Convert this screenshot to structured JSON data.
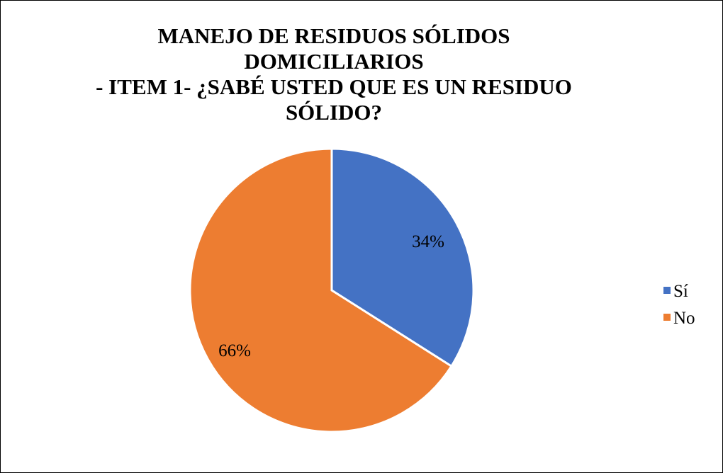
{
  "chart_data": {
    "type": "pie",
    "title_lines": [
      "MANEJO DE RESIDUOS SÓLIDOS DOMICILIARIOS",
      "- ITEM 1- ¿SABÉ USTED QUE ES UN RESIDUO",
      "SÓLIDO?"
    ],
    "slices": [
      {
        "label": "Sí",
        "value": 34,
        "display": "34%",
        "color": "#4472C4"
      },
      {
        "label": "No",
        "value": 66,
        "display": "66%",
        "color": "#ED7D31"
      }
    ],
    "legend_position": "right"
  }
}
